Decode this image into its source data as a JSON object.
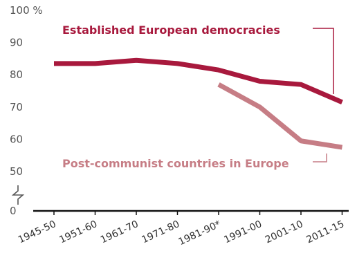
{
  "chart_data": {
    "type": "line",
    "categories": [
      "1945-50",
      "1951-60",
      "1961-70",
      "1971-80",
      "1981-90*",
      "1991-00",
      "2001-10",
      "2011-15"
    ],
    "y_ticks": [
      "100 %",
      "90",
      "80",
      "70",
      "60",
      "50",
      "0"
    ],
    "axis_break": true,
    "ylim": [
      0,
      100
    ],
    "grid": false,
    "series": [
      {
        "name": "Established European democracies",
        "color": "#a8193d",
        "values": [
          83.5,
          83.5,
          84.5,
          83.5,
          81.5,
          78,
          77,
          71.5
        ]
      },
      {
        "name": "Post-communist countries in Europe",
        "color": "#c67d85",
        "values": [
          null,
          null,
          null,
          null,
          77,
          70,
          59.5,
          57.5
        ]
      }
    ]
  }
}
